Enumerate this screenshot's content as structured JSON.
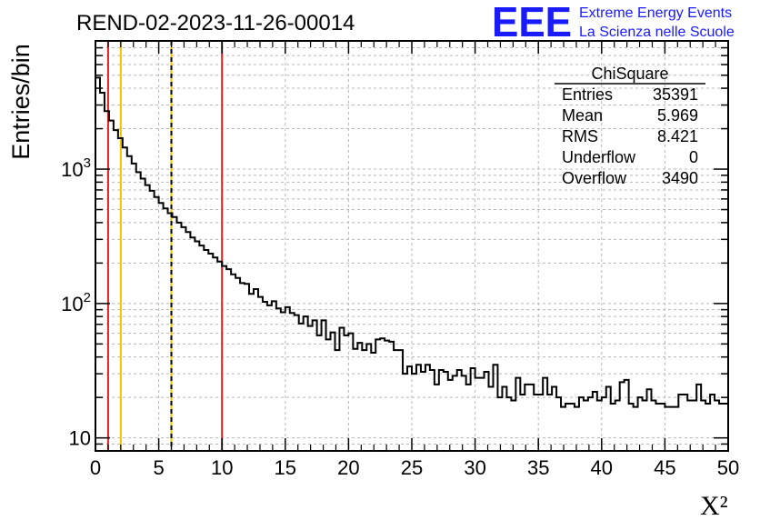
{
  "chart_data": {
    "type": "histogram",
    "title": "REND-02-2023-11-26-00014",
    "xlabel": "X²",
    "ylabel": "Entries/bin",
    "xlim": [
      0,
      50
    ],
    "ylim": [
      8,
      9000
    ],
    "yscale": "log",
    "grid": true,
    "bin_width": 0.5,
    "x_ticks": [
      "0",
      "5",
      "10",
      "15",
      "20",
      "25",
      "30",
      "35",
      "40",
      "45",
      "50"
    ],
    "y_ticks": [
      {
        "base": "10",
        "exp": "",
        "value": 10
      },
      {
        "base": "10",
        "exp": "2",
        "value": 100
      },
      {
        "base": "10",
        "exp": "3",
        "value": 1000
      }
    ],
    "values": [
      4800,
      3700,
      2700,
      2300,
      1950,
      1700,
      1450,
      1250,
      1100,
      950,
      850,
      760,
      690,
      620,
      560,
      510,
      470,
      440,
      400,
      370,
      340,
      310,
      290,
      270,
      250,
      235,
      220,
      205,
      190,
      180,
      165,
      155,
      142,
      140,
      118,
      128,
      112,
      103,
      97,
      104,
      92,
      86,
      94,
      85,
      82,
      71,
      80,
      68,
      75,
      58,
      75,
      54,
      61,
      45,
      66,
      58,
      60,
      46,
      51,
      45,
      50,
      43,
      54,
      55,
      53,
      52,
      45,
      45,
      30,
      34,
      30,
      35,
      31,
      35,
      32,
      25,
      32,
      31,
      27,
      29,
      32,
      29,
      25,
      33,
      28,
      28,
      31,
      24,
      35,
      20,
      24,
      20,
      19,
      28,
      21,
      25,
      25,
      21,
      21,
      28,
      21,
      24,
      20,
      17,
      18,
      18,
      17,
      20,
      19,
      20,
      22,
      19,
      20,
      24,
      18,
      19,
      26,
      27,
      18,
      17,
      20,
      19,
      23,
      19,
      18,
      18,
      17,
      17,
      17,
      21,
      21,
      19,
      19,
      25,
      19,
      18,
      21,
      19,
      18,
      18
    ],
    "vertical_lines": [
      {
        "x": 1,
        "color": "#dd2222",
        "style": "solid"
      },
      {
        "x": 2,
        "color": "#f2c200",
        "style": "solid"
      },
      {
        "x": 6,
        "color": "#f2c200",
        "style": "solid"
      },
      {
        "x": 6,
        "color": "#000000",
        "style": "dashed"
      },
      {
        "x": 10,
        "color": "#dd2222",
        "style": "solid"
      }
    ],
    "stats_box": {
      "title": "ChiSquare",
      "rows": [
        {
          "label": "Entries",
          "value": "35391"
        },
        {
          "label": "Mean",
          "value": "5.969"
        },
        {
          "label": "RMS",
          "value": "8.421"
        },
        {
          "label": "Underflow",
          "value": "0"
        },
        {
          "label": "Overflow",
          "value": "3490"
        }
      ]
    }
  },
  "logo": {
    "mark": "EEE",
    "line1": "Extreme Energy Events",
    "line2": "La Scienza nelle Scuole",
    "color": "#1a1aff"
  }
}
